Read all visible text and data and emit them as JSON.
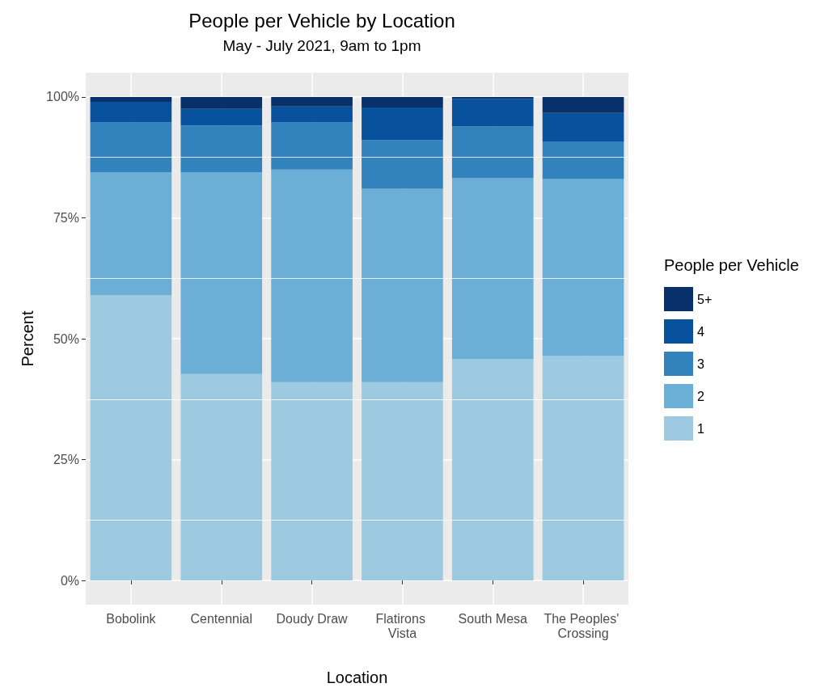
{
  "chart_data": {
    "type": "bar",
    "title": "People per Vehicle by Location",
    "subtitle": "May - July 2021, 9am to 1pm",
    "xlabel": "Location",
    "ylabel": "Percent",
    "legend_title": "People per Vehicle",
    "categories": [
      "Bobolink",
      "Centennial",
      "Doudy Draw",
      "Flatirons Vista",
      "South Mesa",
      "The Peoples' Crossing"
    ],
    "stacked": true,
    "series": [
      {
        "name": "1",
        "color": "#9ecae1",
        "values": [
          59.0,
          42.7,
          41.0,
          41.0,
          45.8,
          46.4
        ]
      },
      {
        "name": "2",
        "color": "#6baed6",
        "values": [
          25.4,
          41.7,
          44.0,
          40.0,
          37.4,
          36.6
        ]
      },
      {
        "name": "3",
        "color": "#3182bd",
        "values": [
          10.3,
          9.7,
          9.7,
          10.1,
          10.7,
          7.8
        ]
      },
      {
        "name": "4",
        "color": "#08519c",
        "values": [
          4.3,
          3.4,
          3.3,
          6.7,
          5.7,
          5.9
        ]
      },
      {
        "name": "5+",
        "color": "#08306b",
        "values": [
          1.0,
          2.5,
          2.0,
          2.2,
          0.4,
          3.3
        ]
      }
    ],
    "ylim": [
      -5,
      105
    ],
    "yticks": [
      {
        "value": 0,
        "label": "0%"
      },
      {
        "value": 25,
        "label": "25%"
      },
      {
        "value": 50,
        "label": "50%"
      },
      {
        "value": 75,
        "label": "75%"
      },
      {
        "value": 100,
        "label": "100%"
      }
    ],
    "grid": true,
    "legend": "right"
  }
}
